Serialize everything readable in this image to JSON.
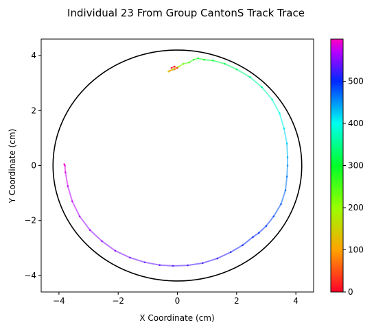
{
  "chart_data": {
    "type": "line",
    "title": "Individual 23 From Group CantonS Track Trace",
    "xlabel": "X Coordinate (cm)",
    "ylabel": "Y Coordinate (cm)",
    "xlim": [
      -4.6,
      4.6
    ],
    "ylim": [
      -4.6,
      4.6
    ],
    "xticks": [
      -4,
      -2,
      0,
      2,
      4
    ],
    "yticks": [
      -4,
      -2,
      0,
      2,
      4
    ],
    "xtick_labels": [
      "−4",
      "−2",
      "0",
      "2",
      "4"
    ],
    "ytick_labels": [
      "−4",
      "−2",
      "0",
      "2",
      "4"
    ],
    "grid": false,
    "arena": {
      "center": [
        0,
        0
      ],
      "radius": 4.2,
      "color": "#000000"
    },
    "colorbar": {
      "colormap": "gist_rainbow",
      "range": [
        0,
        600
      ],
      "ticks": [
        0,
        100,
        200,
        300,
        400,
        500
      ],
      "tick_labels": [
        "0",
        "100",
        "200",
        "300",
        "400",
        "500"
      ]
    },
    "trajectory": {
      "color_by": "frame",
      "points": [
        [
          -0.2,
          3.55,
          0
        ],
        [
          -0.1,
          3.6,
          15
        ],
        [
          0.0,
          3.55,
          30
        ],
        [
          -0.1,
          3.5,
          50
        ],
        [
          -0.25,
          3.45,
          90
        ],
        [
          -0.3,
          3.42,
          130
        ],
        [
          -0.15,
          3.5,
          170
        ],
        [
          0.05,
          3.6,
          200
        ],
        [
          0.2,
          3.7,
          230
        ],
        [
          0.4,
          3.75,
          250
        ],
        [
          0.55,
          3.85,
          270
        ],
        [
          0.7,
          3.9,
          285
        ],
        [
          0.9,
          3.85,
          295
        ],
        [
          1.2,
          3.82,
          305
        ],
        [
          1.6,
          3.7,
          320
        ],
        [
          2.0,
          3.5,
          335
        ],
        [
          2.45,
          3.22,
          350
        ],
        [
          2.85,
          2.85,
          365
        ],
        [
          3.2,
          2.4,
          380
        ],
        [
          3.45,
          1.9,
          395
        ],
        [
          3.6,
          1.35,
          410
        ],
        [
          3.7,
          0.8,
          425
        ],
        [
          3.72,
          0.3,
          440
        ],
        [
          3.72,
          0.0,
          450
        ],
        [
          3.7,
          -0.4,
          460
        ],
        [
          3.65,
          -0.9,
          470
        ],
        [
          3.5,
          -1.4,
          478
        ],
        [
          3.25,
          -1.85,
          486
        ],
        [
          3.0,
          -2.2,
          492
        ],
        [
          2.75,
          -2.45,
          497
        ],
        [
          2.55,
          -2.6,
          501
        ],
        [
          2.2,
          -2.9,
          506
        ],
        [
          1.8,
          -3.15,
          512
        ],
        [
          1.35,
          -3.38,
          518
        ],
        [
          0.85,
          -3.55,
          523
        ],
        [
          0.35,
          -3.63,
          528
        ],
        [
          -0.15,
          -3.65,
          532
        ],
        [
          -0.6,
          -3.62,
          536
        ],
        [
          -1.1,
          -3.52,
          540
        ],
        [
          -1.6,
          -3.35,
          545
        ],
        [
          -2.1,
          -3.1,
          550
        ],
        [
          -2.55,
          -2.75,
          555
        ],
        [
          -2.95,
          -2.35,
          560
        ],
        [
          -3.3,
          -1.85,
          565
        ],
        [
          -3.55,
          -1.3,
          570
        ],
        [
          -3.7,
          -0.75,
          576
        ],
        [
          -3.78,
          -0.25,
          583
        ],
        [
          -3.8,
          0.0,
          590
        ],
        [
          -3.82,
          0.05,
          599
        ]
      ]
    }
  }
}
